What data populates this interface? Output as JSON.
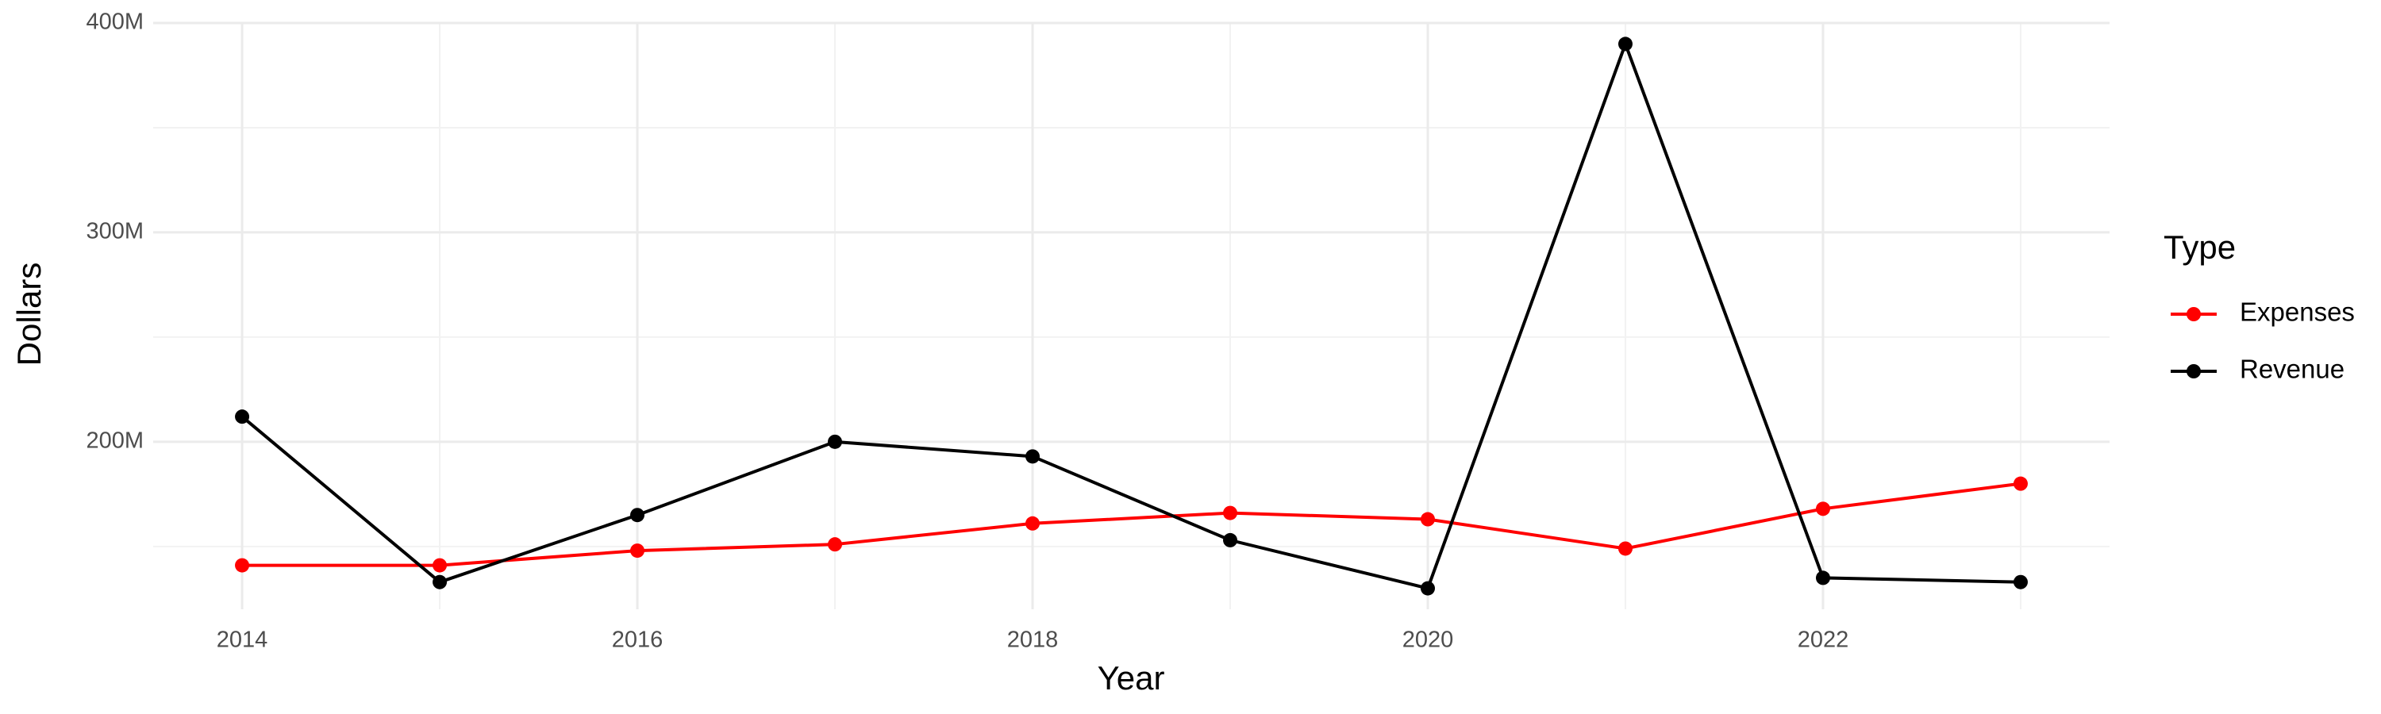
{
  "chart_data": {
    "type": "line",
    "x_label": "Year",
    "y_label": "Dollars",
    "x": [
      2014,
      2015,
      2016,
      2017,
      2018,
      2019,
      2020,
      2021,
      2022,
      2023
    ],
    "series": [
      {
        "name": "Expenses",
        "color": "#ff0000",
        "values": [
          141000000,
          141000000,
          148000000,
          151000000,
          161000000,
          166000000,
          163000000,
          149000000,
          168000000,
          180000000
        ]
      },
      {
        "name": "Revenue",
        "color": "#000000",
        "values": [
          212000000,
          133000000,
          165000000,
          200000000,
          193000000,
          153000000,
          130000000,
          390000000,
          135000000,
          133000000
        ]
      }
    ],
    "legend_title": "Type",
    "legend": "right",
    "xlim": [
      2013.55,
      2023.45
    ],
    "xticks": [
      2014,
      2016,
      2018,
      2020,
      2022
    ],
    "ylim": [
      120000000,
      400000000
    ],
    "yticks": [
      {
        "value": 200000000,
        "label": "200M"
      },
      {
        "value": 300000000,
        "label": "300M"
      },
      {
        "value": 400000000,
        "label": "400M"
      }
    ],
    "grid": true
  }
}
